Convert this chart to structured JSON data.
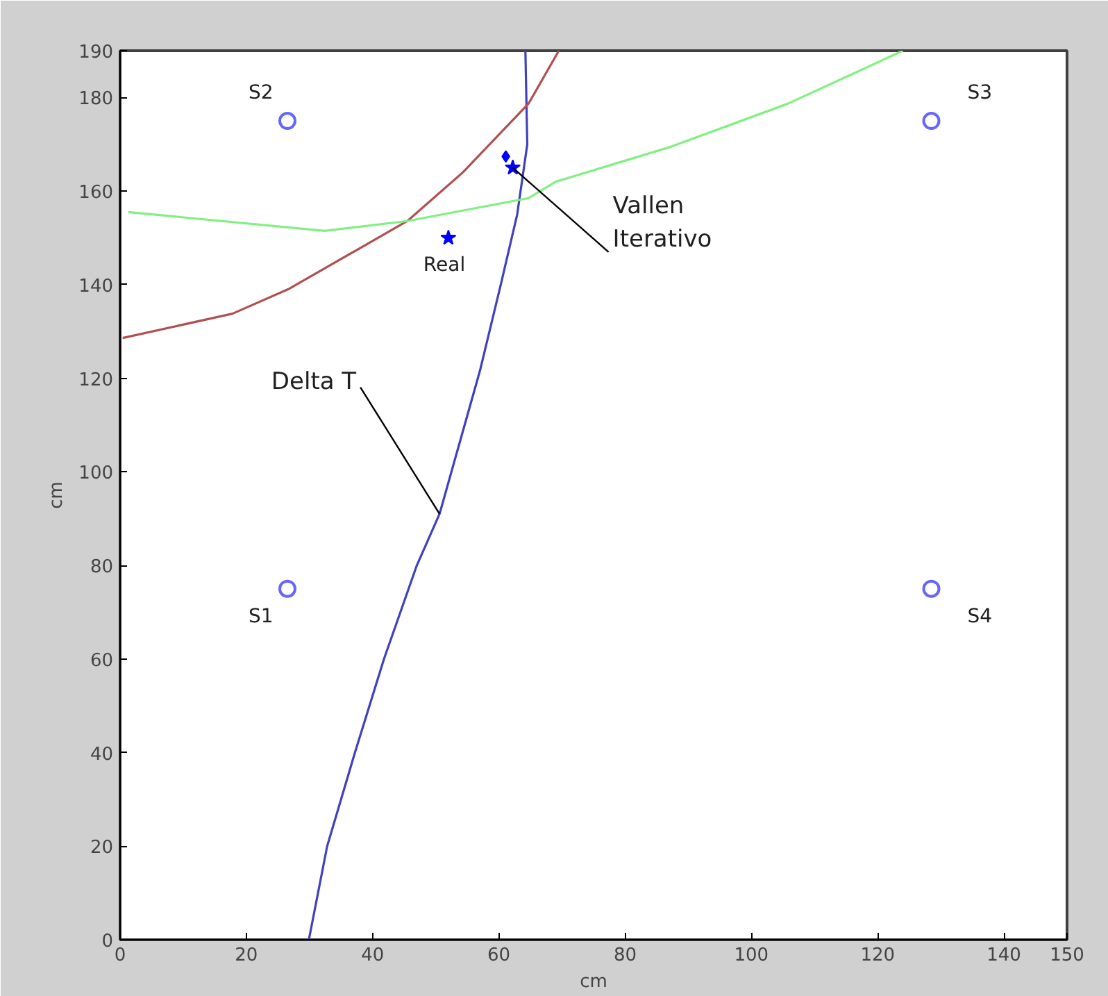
{
  "chart_data": {
    "type": "line",
    "xlabel": "cm",
    "ylabel": "cm",
    "xlim": [
      0,
      150
    ],
    "ylim": [
      0,
      190
    ],
    "xticks": [
      0,
      20,
      40,
      60,
      80,
      100,
      120,
      140,
      150
    ],
    "yticks": [
      0,
      20,
      40,
      60,
      80,
      100,
      120,
      140,
      160,
      180,
      190
    ],
    "grid": false,
    "line_style": "solid",
    "series": [
      {
        "color": "#4040c0",
        "x": [
          29.9,
          32.8,
          37.2,
          41.8,
          47,
          50.6,
          57,
          60.3,
          62.9,
          64.5,
          64.2
        ],
        "values": [
          0,
          20,
          40,
          60,
          80,
          91,
          121.6,
          140,
          155,
          170,
          190
        ]
      },
      {
        "color": "#b05050",
        "x": [
          0.4,
          17.8,
          26.6,
          45.5,
          54.3,
          64.7,
          69.5
        ],
        "values": [
          128.6,
          133.8,
          139,
          153.6,
          164,
          178.7,
          190
        ]
      },
      {
        "color": "#80f080",
        "x": [
          1.3,
          32.4,
          45.5,
          64.7,
          69,
          87.3,
          105.8,
          124
        ],
        "values": [
          155.5,
          151.5,
          153.6,
          158.5,
          162,
          169.5,
          178.7,
          190
        ]
      },
      {
        "type": "scatter",
        "marker": "circle",
        "color": "#6666ff",
        "x": [
          26.5,
          26.5,
          128.5,
          128.5
        ],
        "values": [
          75,
          175,
          175,
          75
        ]
      },
      {
        "type": "scatter",
        "marker": "star",
        "color": "#0000ff",
        "x": [
          52,
          62.2
        ],
        "values": [
          150,
          165
        ]
      },
      {
        "type": "scatter",
        "marker": "diamond",
        "color": "#0000ff",
        "x": [
          61.1
        ],
        "values": [
          167.4
        ]
      }
    ],
    "annotations": [
      {
        "text": "S1",
        "x": 26.5,
        "y": 75
      },
      {
        "text": "S2",
        "x": 26.5,
        "y": 175
      },
      {
        "text": "S3",
        "x": 128.5,
        "y": 175
      },
      {
        "text": "S4",
        "x": 128.5,
        "y": 75
      },
      {
        "text": "Real",
        "x": 52,
        "y": 150
      },
      {
        "text": "Vallen\nIterativo",
        "x": 62.2,
        "y": 165
      },
      {
        "text": "Delta T",
        "x": 50.6,
        "y": 91
      }
    ]
  }
}
